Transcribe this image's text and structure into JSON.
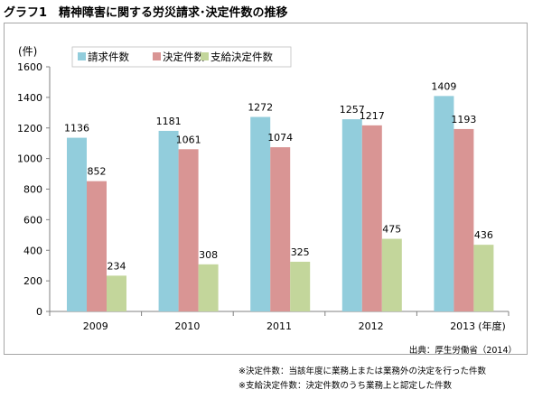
{
  "title": "グラフ1　精神障害に関する労災請求･決定件数の推移",
  "source": "出典：厚生労働省（2014）",
  "notes": [
    "※決定件数：当該年度に業務上または業務外の決定を行った件数",
    "※支給決定件数：決定件数のうち業務上と認定した件数"
  ],
  "chart_data": {
    "type": "bar",
    "y_unit_label": "(件)",
    "x_unit_label": "(年度)",
    "categories": [
      "2009",
      "2010",
      "2011",
      "2012",
      "2013"
    ],
    "ylim": [
      0,
      1600
    ],
    "yticks": [
      0,
      200,
      400,
      600,
      800,
      1000,
      1200,
      1400,
      1600
    ],
    "grid": false,
    "legend_position": "top-left",
    "series": [
      {
        "name": "請求件数",
        "color": "#92cddc",
        "values": [
          1136,
          1181,
          1272,
          1257,
          1409
        ]
      },
      {
        "name": "決定件数",
        "color": "#d99594",
        "values": [
          852,
          1061,
          1074,
          1217,
          1193
        ]
      },
      {
        "name": "支給決定件数",
        "color": "#c3d69b",
        "values": [
          234,
          308,
          325,
          475,
          436
        ]
      }
    ]
  }
}
